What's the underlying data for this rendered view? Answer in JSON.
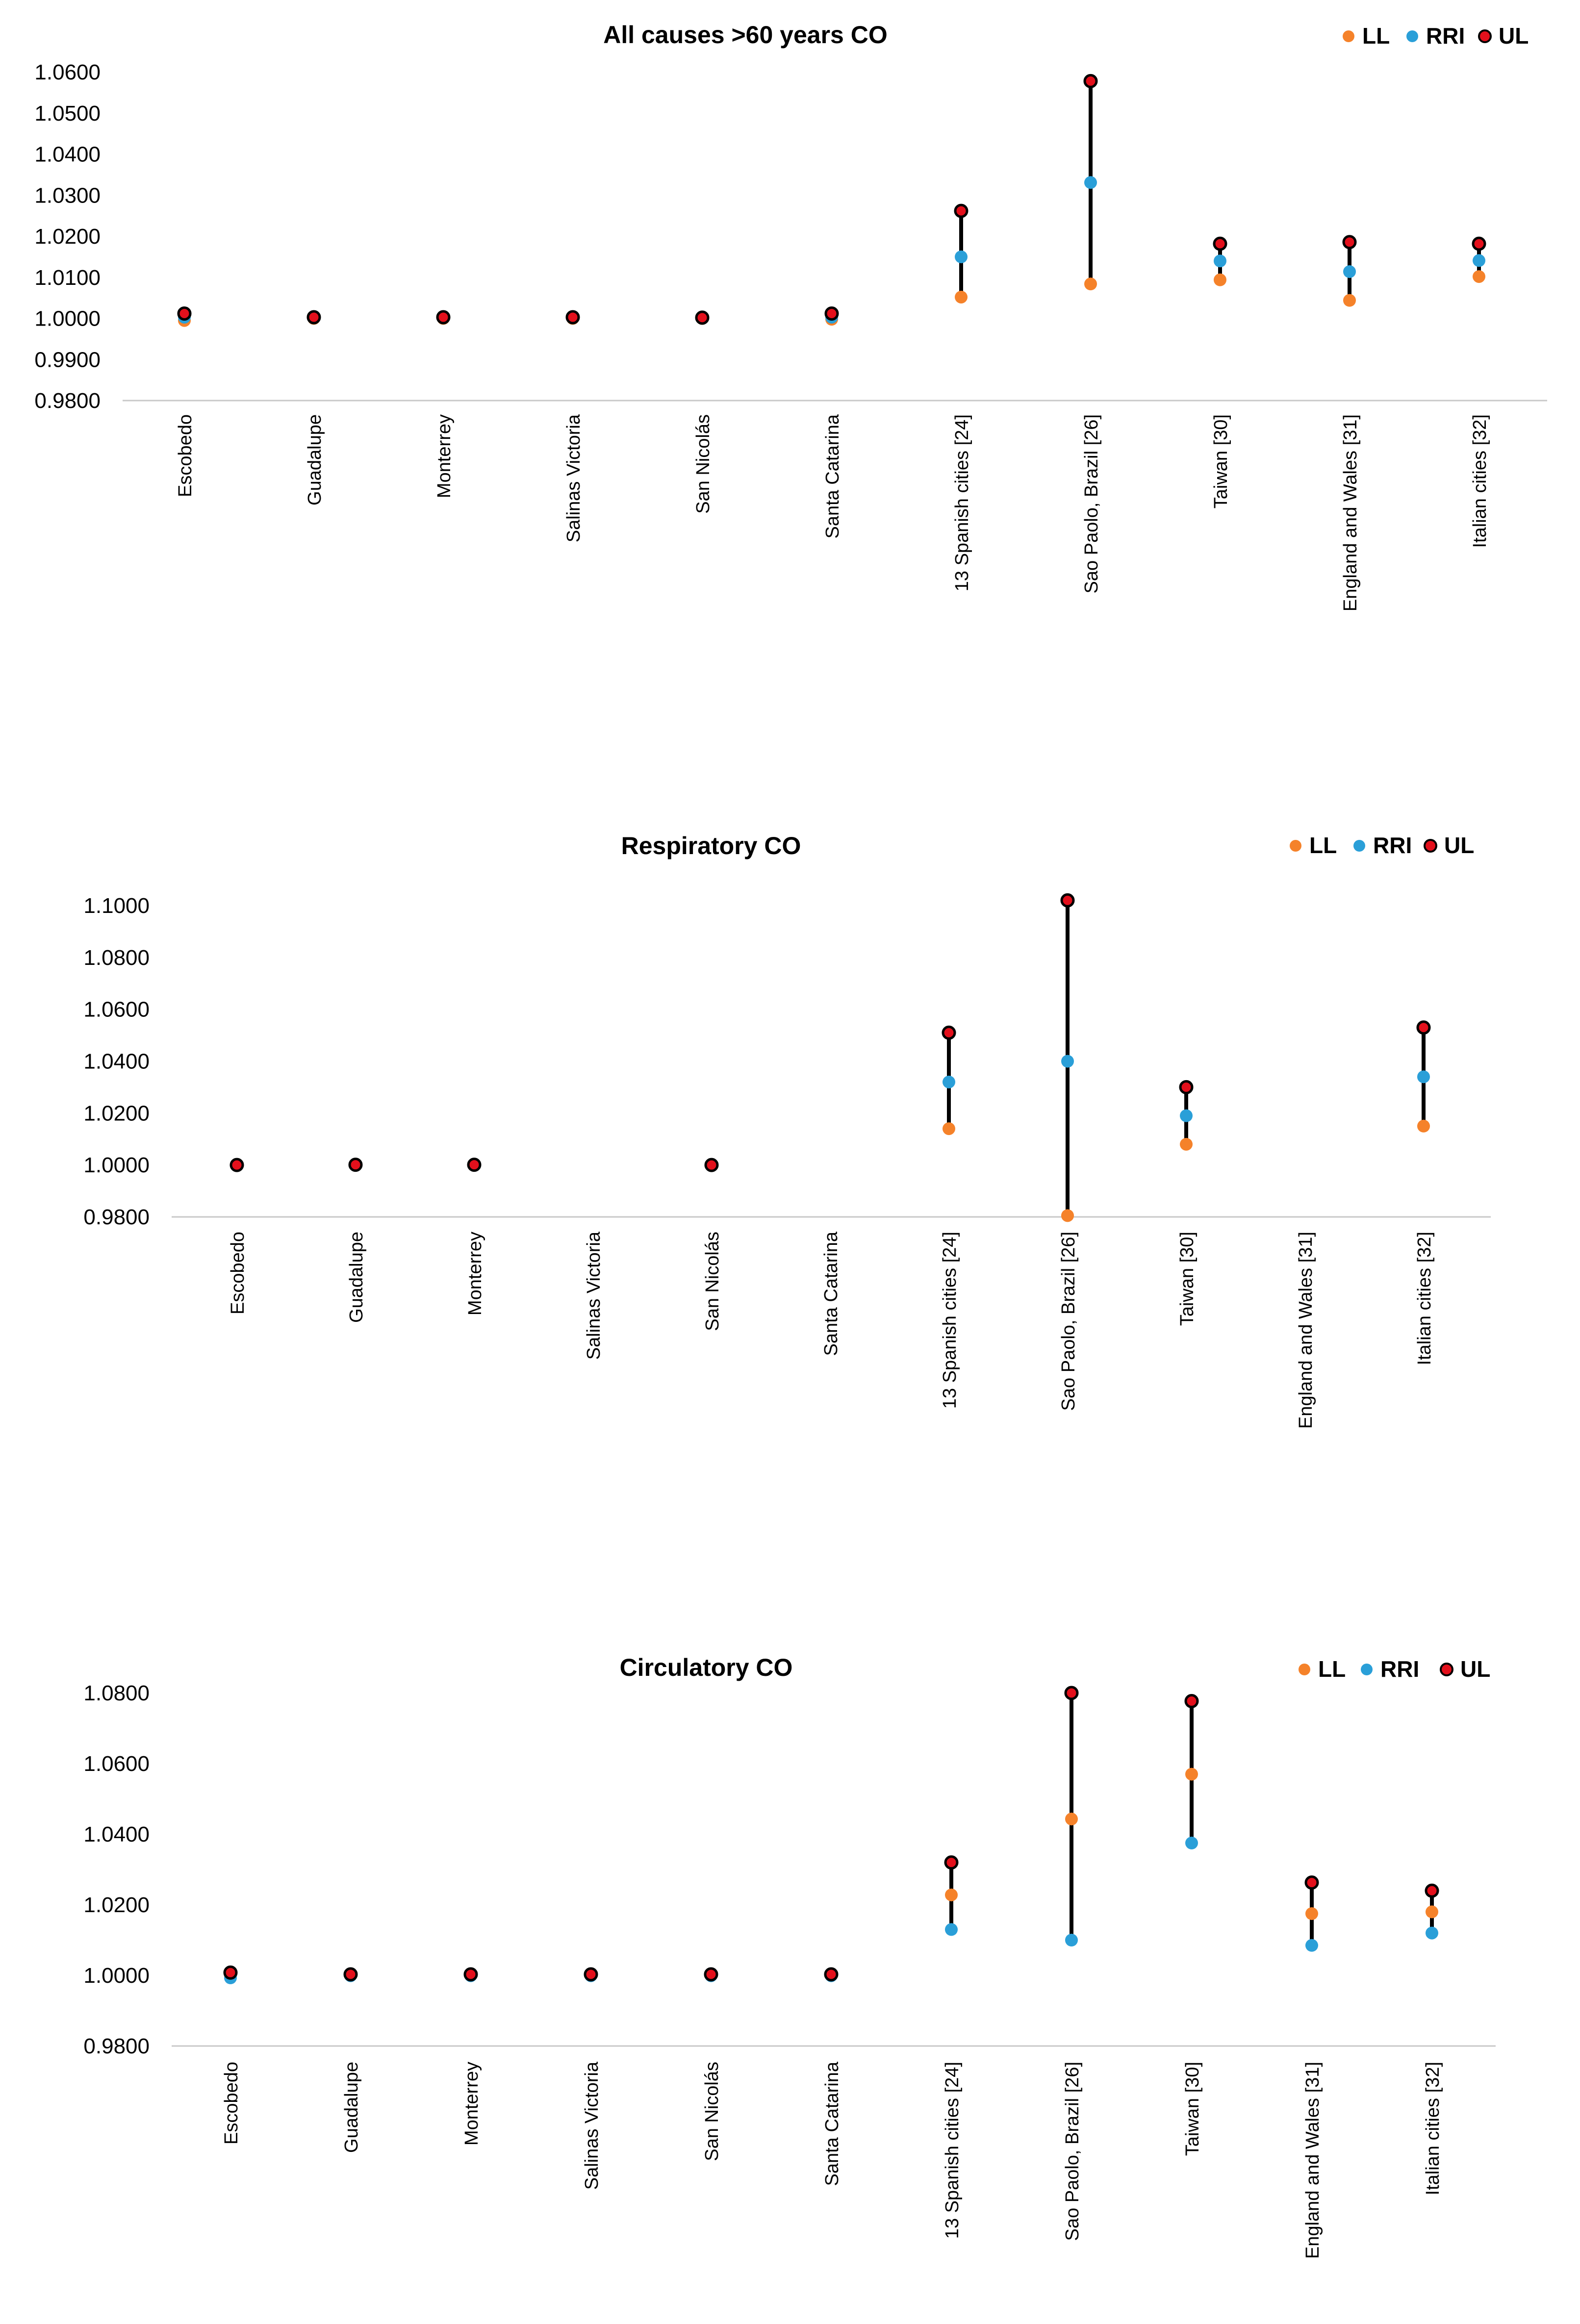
{
  "colors": {
    "LL": "#f5822a",
    "RRI": "#2a9fd8",
    "UL": "#e3101c",
    "marker_edge": "#000000",
    "range_line": "#000000",
    "axis": "#c8c8c8"
  },
  "chart_data": [
    {
      "type": "scatter",
      "title": "All causes >60 years CO",
      "legend": [
        "LL",
        "RRI",
        "UL"
      ],
      "legend_position": "top-right",
      "ylim": [
        0.98,
        1.06
      ],
      "yticks": [
        "1.0600",
        "1.0500",
        "1.0400",
        "1.0300",
        "1.0200",
        "1.0100",
        "1.0000",
        "0.9900",
        "0.9800"
      ],
      "categories": [
        "Escobedo",
        "Guadalupe",
        "Monterrey",
        "Salinas Victoria",
        "San Nicolás",
        "Santa Catarina",
        "13 Spanish cities [24]",
        "Sao Paolo, Brazil [26]",
        "Taiwan [30]",
        "England and Wales [31]",
        "Italian cities [32]"
      ],
      "series": [
        {
          "name": "LL",
          "values": [
            0.9995,
            1.0,
            1.0,
            1.0,
            1.0,
            0.9998,
            1.0052,
            1.0084,
            1.0094,
            1.0044,
            1.0102
          ]
        },
        {
          "name": "RRI",
          "values": [
            1.0003,
            1.0001,
            1.0001,
            1.0001,
            1.0001,
            1.0003,
            1.015,
            1.0331,
            1.014,
            1.0114,
            1.0141
          ]
        },
        {
          "name": "UL",
          "values": [
            1.0012,
            1.0003,
            1.0003,
            1.0003,
            1.0002,
            1.0012,
            1.0262,
            1.0578,
            1.0182,
            1.0186,
            1.0182
          ]
        }
      ]
    },
    {
      "type": "scatter",
      "title": "Respiratory CO",
      "legend": [
        "LL",
        "RRI",
        "UL"
      ],
      "legend_position": "top-right",
      "ylim": [
        0.98,
        1.1
      ],
      "yticks": [
        "1.1000",
        "1.0800",
        "1.0600",
        "1.0400",
        "1.0200",
        "1.0000",
        "0.9800"
      ],
      "categories": [
        "Escobedo",
        "Guadalupe",
        "Monterrey",
        "Salinas Victoria",
        "San Nicolás",
        "Santa Catarina",
        "13 Spanish cities [24]",
        "Sao Paolo, Brazil [26]",
        "Taiwan [30]",
        "England and Wales [31]",
        "Italian cities [32]"
      ],
      "series": [
        {
          "name": "LL",
          "values": [
            0.9998,
            0.9999,
            0.9999,
            null,
            0.9998,
            null,
            1.014,
            0.9805,
            1.008,
            null,
            1.015
          ]
        },
        {
          "name": "RRI",
          "values": [
            0.9999,
            1.0,
            1.0,
            null,
            0.9999,
            null,
            1.032,
            1.04,
            1.019,
            null,
            1.034
          ]
        },
        {
          "name": "UL",
          "values": [
            1.0,
            1.0001,
            1.0001,
            null,
            1.0,
            null,
            1.051,
            1.102,
            1.03,
            null,
            1.053
          ]
        }
      ]
    },
    {
      "type": "scatter",
      "title": "Circulatory CO",
      "legend": [
        "LL",
        "RRI",
        "UL"
      ],
      "legend_position": "top-right",
      "ylim": [
        0.98,
        1.08
      ],
      "yticks": [
        "1.0800",
        "1.0600",
        "1.0400",
        "1.0200",
        "1.0000",
        "0.9800"
      ],
      "categories": [
        "Escobedo",
        "Guadalupe",
        "Monterrey",
        "Salinas Victoria",
        "San Nicolás",
        "Santa Catarina",
        "13 Spanish cities [24]",
        "Sao Paolo, Brazil [26]",
        "Taiwan [30]",
        "England and Wales [31]",
        "Italian cities [32]"
      ],
      "series": [
        {
          "name": "RRI",
          "values": [
            0.9993,
            0.9999,
            0.9999,
            0.9999,
            0.9999,
            0.9999,
            1.013,
            1.01,
            1.0375,
            1.0085,
            1.012
          ]
        },
        {
          "name": "LL",
          "values": [
            1.0003,
            1.0001,
            1.0001,
            1.0001,
            1.0001,
            1.0001,
            1.0228,
            1.0443,
            1.057,
            1.0175,
            1.018
          ]
        },
        {
          "name": "UL",
          "values": [
            1.0008,
            1.0003,
            1.0003,
            1.0003,
            1.0003,
            1.0003,
            1.032,
            1.08,
            1.0777,
            1.0263,
            1.024
          ]
        }
      ]
    }
  ]
}
